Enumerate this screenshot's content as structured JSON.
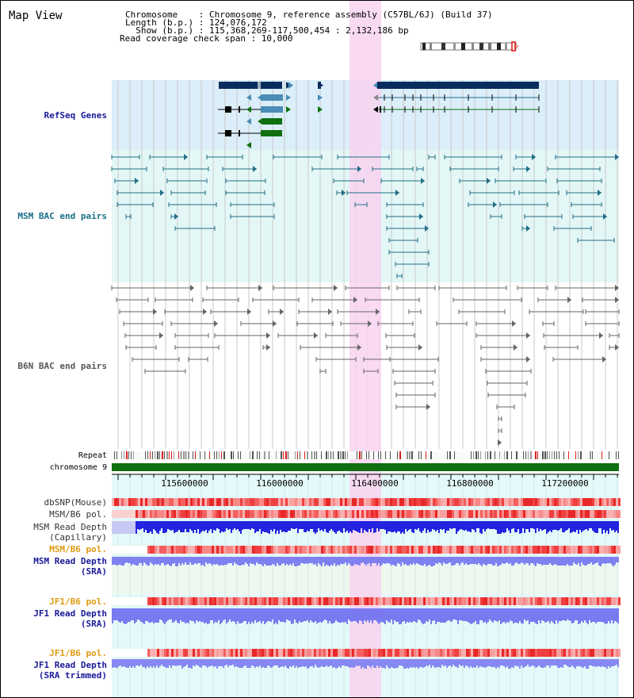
{
  "page_title": "Map View",
  "header": {
    "chromosome_label": "Chromosome    : Chromosome 9, reference assembly (C57BL/6J) (Build 37)",
    "length_label": "Length (b.p.) : 124,076,172",
    "show_label": "  Show (b.p.) : 115,368,269-117,500,454 : 2,132,186 bp",
    "coverage_label": "Read coverage check span : 10,000"
  },
  "tracks": {
    "refseq": "RefSeq Genes",
    "msm_bac": "MSM BAC end pairs",
    "b6n_bac": "B6N BAC end pairs",
    "repeat": "Repeat",
    "chromosome": "chromosome 9"
  },
  "axis_ticks": [
    "115600000",
    "116000000",
    "116400000",
    "116800000",
    "117200000"
  ],
  "lower_tracks": {
    "dbsnp": "dbSNP(Mouse)",
    "msm_pol": "MSM/B6 pol.",
    "msm_cap_1": "MSM Read Depth",
    "msm_cap_2": "(Capillary)",
    "msm_pol2": "MSM/B6 pol.",
    "msm_sra_1": "MSM Read Depth",
    "msm_sra_2": "(SRA)",
    "jf1_pol": "JF1/B6 pol.",
    "jf1_sra_1": "JF1 Read Depth",
    "jf1_sra_2": "(SRA)",
    "jf1_pol2": "JF1/B6 pol.",
    "jf1_trim_1": "JF1 Read Depth",
    "jf1_trim_2": "(SRA trimmed)"
  },
  "colors": {
    "refseq_bg": "#dbeef9",
    "bac_bg": "#e4f7f7",
    "highlight": "#f8d4f0",
    "gene_dark": "#0a2d5c",
    "gene_mid": "#4a8cb5",
    "gene_green": "#107010",
    "msm_line": "#226e86",
    "b6n_line": "#666666",
    "label_blue": "#1a1a9a",
    "label_teal": "#1a6e86",
    "label_orange": "#e09a10",
    "depth_blue": "#2424e0",
    "depth_light": "#8080f0"
  }
}
